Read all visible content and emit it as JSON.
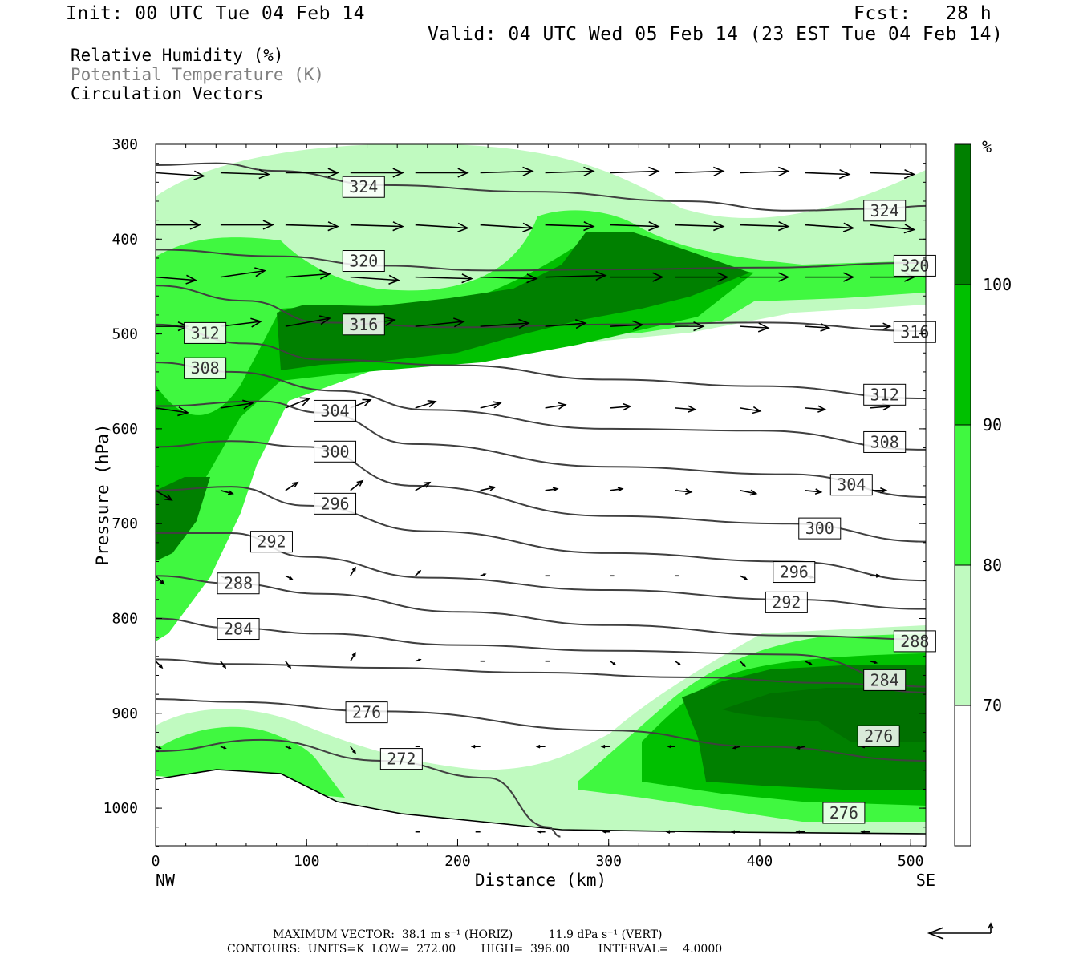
{
  "header": {
    "init": "Init: 00 UTC Tue 04 Feb 14",
    "fcst": "Fcst:   28 h",
    "valid": "Valid: 04 UTC Wed 05 Feb 14 (23 EST Tue 04 Feb 14)"
  },
  "legend_text": {
    "rh": "Relative Humidity (%)",
    "theta": "Potential Temperature (K)",
    "vectors": "Circulation Vectors"
  },
  "footer": {
    "max_vector": "MAXIMUM VECTOR:  38.1 m s⁻¹ (HORIZ)          11.9 dPa s⁻¹ (VERT)",
    "contours": "CONTOURS:  UNITS=K  LOW=  272.00       HIGH=  396.00        INTERVAL=    4.0000"
  },
  "colors": {
    "rh_70": "#c0fac0",
    "rh_80": "#40f840",
    "rh_90": "#00c000",
    "rh_100": "#008000",
    "contour": "#404040",
    "vector": "#000000"
  },
  "chart_data": {
    "type": "cross-section",
    "xlabel": "Distance (km)",
    "ylabel": "Pressure (hPa)",
    "xlim": [
      0,
      510
    ],
    "ylim": [
      1050,
      300
    ],
    "x_ticks": [
      0,
      100,
      200,
      300,
      400,
      500
    ],
    "y_ticks": [
      300,
      400,
      500,
      600,
      700,
      800,
      900,
      1000
    ],
    "x_end_labels": {
      "left": "NW",
      "right": "SE"
    },
    "colorbar": {
      "unit": "%",
      "levels": [
        70,
        80,
        90,
        100
      ]
    },
    "isentropes": [
      {
        "theta": "324",
        "points": [
          [
            0,
            322
          ],
          [
            40,
            320
          ],
          [
            80,
            328
          ],
          [
            150,
            343
          ],
          [
            250,
            350
          ],
          [
            350,
            360
          ],
          [
            420,
            370
          ],
          [
            480,
            368
          ],
          [
            510,
            365
          ]
        ],
        "label_at": [
          [
            125,
            345
          ],
          [
            470,
            370
          ]
        ]
      },
      {
        "theta": "320",
        "points": [
          [
            0,
            411
          ],
          [
            80,
            418
          ],
          [
            150,
            428
          ],
          [
            220,
            433
          ],
          [
            300,
            432
          ],
          [
            400,
            430
          ],
          [
            510,
            425
          ]
        ],
        "label_at": [
          [
            125,
            423
          ],
          [
            490,
            428
          ]
        ]
      },
      {
        "theta": "316",
        "points": [
          [
            0,
            449
          ],
          [
            60,
            465
          ],
          [
            110,
            488
          ],
          [
            200,
            493
          ],
          [
            300,
            490
          ],
          [
            400,
            488
          ],
          [
            510,
            497
          ]
        ],
        "label_at": [
          [
            125,
            490
          ],
          [
            490,
            498
          ]
        ]
      },
      {
        "theta": "312",
        "points": [
          [
            0,
            490
          ],
          [
            60,
            510
          ],
          [
            110,
            527
          ],
          [
            200,
            533
          ],
          [
            300,
            548
          ],
          [
            400,
            555
          ],
          [
            510,
            568
          ]
        ],
        "label_at": [
          [
            20,
            499
          ],
          [
            470,
            564
          ]
        ]
      },
      {
        "theta": "308",
        "points": [
          [
            0,
            530
          ],
          [
            50,
            540
          ],
          [
            120,
            560
          ],
          [
            180,
            580
          ],
          [
            300,
            600
          ],
          [
            400,
            602
          ],
          [
            510,
            622
          ]
        ],
        "label_at": [
          [
            20,
            536
          ],
          [
            470,
            614
          ]
        ]
      },
      {
        "theta": "304",
        "points": [
          [
            0,
            576
          ],
          [
            70,
            571
          ],
          [
            110,
            583
          ],
          [
            170,
            616
          ],
          [
            300,
            640
          ],
          [
            420,
            648
          ],
          [
            510,
            672
          ]
        ],
        "label_at": [
          [
            106,
            581
          ],
          [
            448,
            659
          ]
        ]
      },
      {
        "theta": "300",
        "points": [
          [
            0,
            619
          ],
          [
            50,
            613
          ],
          [
            100,
            619
          ],
          [
            170,
            660
          ],
          [
            300,
            692
          ],
          [
            420,
            700
          ],
          [
            510,
            719
          ]
        ],
        "label_at": [
          [
            106,
            624
          ],
          [
            427,
            705
          ]
        ]
      },
      {
        "theta": "296",
        "points": [
          [
            0,
            665
          ],
          [
            50,
            661
          ],
          [
            100,
            681
          ],
          [
            180,
            708
          ],
          [
            300,
            731
          ],
          [
            420,
            740
          ],
          [
            510,
            760
          ]
        ],
        "label_at": [
          [
            106,
            679
          ],
          [
            410,
            751
          ]
        ]
      },
      {
        "theta": "292",
        "points": [
          [
            0,
            710
          ],
          [
            50,
            710
          ],
          [
            100,
            735
          ],
          [
            180,
            757
          ],
          [
            300,
            770
          ],
          [
            420,
            780
          ],
          [
            510,
            790
          ]
        ],
        "label_at": [
          [
            64,
            719
          ],
          [
            405,
            783
          ]
        ]
      },
      {
        "theta": "288",
        "points": [
          [
            0,
            755
          ],
          [
            50,
            763
          ],
          [
            110,
            774
          ],
          [
            200,
            793
          ],
          [
            300,
            807
          ],
          [
            420,
            818
          ],
          [
            510,
            822
          ]
        ],
        "label_at": [
          [
            42,
            763
          ],
          [
            490,
            824
          ]
        ]
      },
      {
        "theta": "284",
        "points": [
          [
            0,
            800
          ],
          [
            50,
            810
          ],
          [
            110,
            816
          ],
          [
            200,
            828
          ],
          [
            300,
            834
          ],
          [
            420,
            838
          ],
          [
            510,
            872
          ]
        ],
        "label_at": [
          [
            42,
            811
          ],
          [
            470,
            865
          ]
        ]
      },
      {
        "theta": "280",
        "points": [
          [
            0,
            843
          ],
          [
            50,
            848
          ],
          [
            150,
            852
          ],
          [
            250,
            857
          ],
          [
            350,
            862
          ],
          [
            450,
            868
          ],
          [
            510,
            878
          ]
        ],
        "label_at": []
      },
      {
        "theta": "276",
        "points": [
          [
            0,
            885
          ],
          [
            50,
            888
          ],
          [
            150,
            898
          ],
          [
            300,
            918
          ],
          [
            400,
            935
          ],
          [
            510,
            950
          ]
        ],
        "label_at": [
          [
            127,
            899
          ],
          [
            466,
            924
          ],
          [
            443,
            1005
          ]
        ]
      },
      {
        "theta": "272",
        "points": [
          [
            0,
            940
          ],
          [
            70,
            928
          ],
          [
            150,
            950
          ],
          [
            220,
            968
          ],
          [
            260,
            1020
          ],
          [
            268,
            1030
          ]
        ],
        "label_at": [
          [
            150,
            948
          ]
        ]
      }
    ],
    "vectors_note": "circulation vectors (horizontal + vertical motion) along the cross-section"
  }
}
